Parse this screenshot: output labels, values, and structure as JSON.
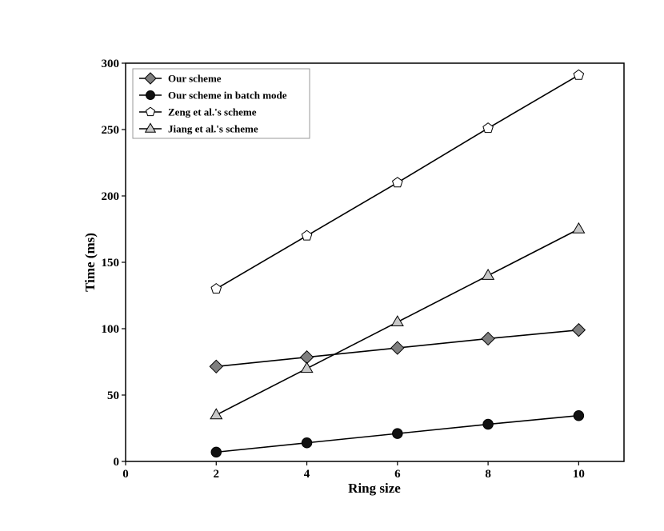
{
  "chart_data": {
    "type": "line",
    "title": "",
    "xlabel": "Ring size",
    "ylabel": "Time (ms)",
    "xlim": [
      0,
      11
    ],
    "ylim": [
      0,
      300
    ],
    "xticks": [
      0,
      2,
      4,
      6,
      8,
      10
    ],
    "yticks": [
      0,
      50,
      100,
      150,
      200,
      250,
      300
    ],
    "x": [
      2,
      4,
      6,
      8,
      10
    ],
    "grid": false,
    "legend_position": "top-left",
    "series": [
      {
        "name": "Our scheme",
        "marker": "diamond",
        "marker_fill": "#7f7f7f",
        "values": [
          71.5,
          78.5,
          85.5,
          92.5,
          99
        ]
      },
      {
        "name": "Our scheme in batch mode",
        "marker": "circle",
        "marker_fill": "#111111",
        "values": [
          7,
          14,
          21,
          28,
          34.5
        ]
      },
      {
        "name": "Zeng et al.'s scheme",
        "marker": "pentagon",
        "marker_fill": "#ffffff",
        "values": [
          130,
          170,
          210,
          251,
          291
        ]
      },
      {
        "name": "Jiang et al.'s scheme",
        "marker": "triangle",
        "marker_fill": "#c8c8c8",
        "values": [
          35,
          70,
          105,
          140,
          175
        ]
      }
    ]
  }
}
